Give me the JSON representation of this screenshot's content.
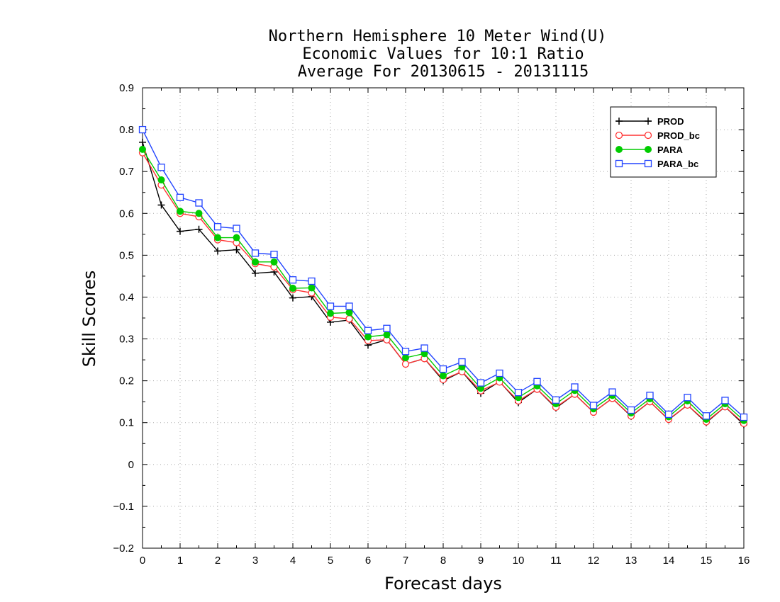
{
  "chart_data": {
    "type": "line",
    "title_lines": [
      "Northern Hemisphere 10 Meter Wind(U)",
      "Economic Values for 10:1 Ratio",
      "Average For 20130615 - 20131115"
    ],
    "xlabel": "Forecast days",
    "ylabel": "Skill Scores",
    "xlim": [
      0,
      16
    ],
    "ylim": [
      -0.2,
      0.9
    ],
    "x_ticks": [
      0,
      1,
      2,
      3,
      4,
      5,
      6,
      7,
      8,
      9,
      10,
      11,
      12,
      13,
      14,
      15,
      16
    ],
    "x_tick_labels": [
      "0",
      "1",
      "2",
      "3",
      "4",
      "5",
      "6",
      "7",
      "8",
      "9",
      "10",
      "11",
      "12",
      "13",
      "14",
      "15",
      "16"
    ],
    "y_ticks": [
      -0.2,
      -0.1,
      0,
      0.1,
      0.2,
      0.3,
      0.4,
      0.5,
      0.6,
      0.7,
      0.8,
      0.9
    ],
    "y_tick_labels": [
      "−0.2",
      "−0.1",
      "0",
      "0.1",
      "0.2",
      "0.3",
      "0.4",
      "0.5",
      "0.6",
      "0.7",
      "0.8",
      "0.9"
    ],
    "grid": true,
    "legend_position": "top-right",
    "x": [
      0,
      0.5,
      1,
      1.5,
      2,
      2.5,
      3,
      3.5,
      4,
      4.5,
      5,
      5.5,
      6,
      6.5,
      7,
      7.5,
      8,
      8.5,
      9,
      9.5,
      10,
      10.5,
      11,
      11.5,
      12,
      12.5,
      13,
      13.5,
      14,
      14.5,
      15,
      15.5,
      16
    ],
    "series": [
      {
        "name": "PROD",
        "color": "#000000",
        "marker": "plus",
        "values": [
          0.77,
          0.62,
          0.557,
          0.562,
          0.51,
          0.513,
          0.457,
          0.46,
          0.398,
          0.401,
          0.34,
          0.345,
          0.285,
          0.298,
          0.24,
          0.253,
          0.2,
          0.222,
          0.17,
          0.198,
          0.148,
          0.18,
          0.135,
          0.168,
          0.125,
          0.158,
          0.115,
          0.15,
          0.107,
          0.142,
          0.1,
          0.138,
          0.095
        ]
      },
      {
        "name": "PROD_bc",
        "color": "#ff3333",
        "marker": "circle-open",
        "values": [
          0.745,
          0.668,
          0.6,
          0.592,
          0.537,
          0.53,
          0.48,
          0.472,
          0.418,
          0.41,
          0.352,
          0.348,
          0.296,
          0.298,
          0.24,
          0.253,
          0.203,
          0.222,
          0.176,
          0.197,
          0.152,
          0.18,
          0.137,
          0.168,
          0.125,
          0.158,
          0.116,
          0.15,
          0.108,
          0.142,
          0.102,
          0.138,
          0.098
        ]
      },
      {
        "name": "PARA",
        "color": "#00cc00",
        "marker": "circle-filled",
        "values": [
          0.753,
          0.68,
          0.605,
          0.6,
          0.542,
          0.542,
          0.484,
          0.484,
          0.421,
          0.422,
          0.361,
          0.363,
          0.305,
          0.31,
          0.255,
          0.265,
          0.212,
          0.233,
          0.182,
          0.207,
          0.16,
          0.188,
          0.145,
          0.177,
          0.133,
          0.165,
          0.123,
          0.157,
          0.114,
          0.152,
          0.108,
          0.145,
          0.105
        ]
      },
      {
        "name": "PARA_bc",
        "color": "#2244ff",
        "marker": "square-open",
        "values": [
          0.8,
          0.71,
          0.638,
          0.625,
          0.568,
          0.564,
          0.505,
          0.502,
          0.441,
          0.438,
          0.378,
          0.378,
          0.32,
          0.325,
          0.27,
          0.278,
          0.228,
          0.245,
          0.195,
          0.218,
          0.172,
          0.198,
          0.154,
          0.185,
          0.141,
          0.173,
          0.13,
          0.165,
          0.12,
          0.16,
          0.116,
          0.153,
          0.113
        ]
      }
    ]
  }
}
